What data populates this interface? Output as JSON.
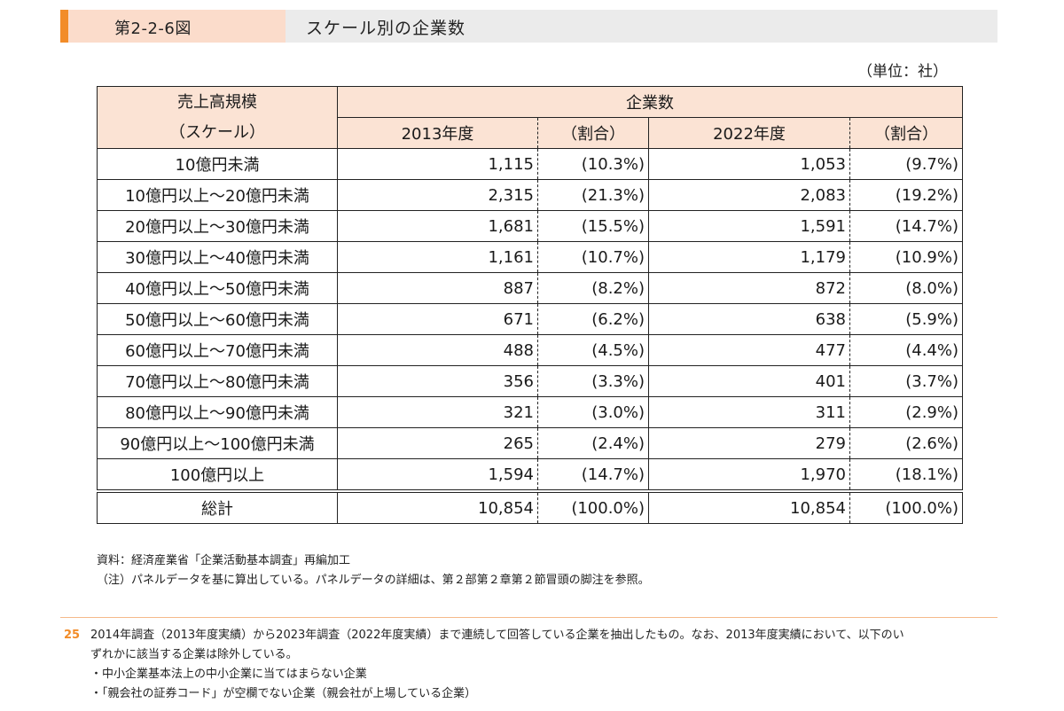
{
  "figure": {
    "number": "第2-2-6図",
    "title": "スケール別の企業数"
  },
  "unit": "（単位：社）",
  "table": {
    "row_header_line1": "売上高規模",
    "row_header_line2": "（スケール）",
    "group_header": "企業数",
    "col_headers": [
      "2013年度",
      "（割合）",
      "2022年度",
      "（割合）"
    ],
    "rows": [
      {
        "label": "10億円未満",
        "v2013": "1,115",
        "p2013": "(10.3%)",
        "v2022": "1,053",
        "p2022": "(9.7%)"
      },
      {
        "label": "10億円以上～20億円未満",
        "v2013": "2,315",
        "p2013": "(21.3%)",
        "v2022": "2,083",
        "p2022": "(19.2%)"
      },
      {
        "label": "20億円以上～30億円未満",
        "v2013": "1,681",
        "p2013": "(15.5%)",
        "v2022": "1,591",
        "p2022": "(14.7%)"
      },
      {
        "label": "30億円以上～40億円未満",
        "v2013": "1,161",
        "p2013": "(10.7%)",
        "v2022": "1,179",
        "p2022": "(10.9%)"
      },
      {
        "label": "40億円以上～50億円未満",
        "v2013": "887",
        "p2013": "(8.2%)",
        "v2022": "872",
        "p2022": "(8.0%)"
      },
      {
        "label": "50億円以上～60億円未満",
        "v2013": "671",
        "p2013": "(6.2%)",
        "v2022": "638",
        "p2022": "(5.9%)"
      },
      {
        "label": "60億円以上～70億円未満",
        "v2013": "488",
        "p2013": "(4.5%)",
        "v2022": "477",
        "p2022": "(4.4%)"
      },
      {
        "label": "70億円以上～80億円未満",
        "v2013": "356",
        "p2013": "(3.3%)",
        "v2022": "401",
        "p2022": "(3.7%)"
      },
      {
        "label": "80億円以上～90億円未満",
        "v2013": "321",
        "p2013": "(3.0%)",
        "v2022": "311",
        "p2022": "(2.9%)"
      },
      {
        "label": "90億円以上～100億円未満",
        "v2013": "265",
        "p2013": "(2.4%)",
        "v2022": "279",
        "p2022": "(2.6%)"
      },
      {
        "label": "100億円以上",
        "v2013": "1,594",
        "p2013": "(14.7%)",
        "v2022": "1,970",
        "p2022": "(18.1%)"
      }
    ],
    "total": {
      "label": "総計",
      "v2013": "10,854",
      "p2013": "(100.0%)",
      "v2022": "10,854",
      "p2022": "(100.0%)"
    }
  },
  "notes": {
    "source": "資料：経済産業省「企業活動基本調査」再編加工",
    "note": "（注）パネルデータを基に算出している。パネルデータの詳細は、第２部第２章第２節冒頭の脚注を参照。"
  },
  "footnote": {
    "number": "25",
    "line1": "2014年調査（2013年度実績）から2023年調査（2022年度実績）まで連続して回答している企業を抽出したもの。なお、2013年度実績において、以下のい",
    "line2": "ずれかに該当する企業は除外している。",
    "bullet1": "・中小企業基本法上の中小企業に当てはまらない企業",
    "bullet2": "・「親会社の証券コード」が空欄でない企業（親会社が上場している企業）"
  }
}
